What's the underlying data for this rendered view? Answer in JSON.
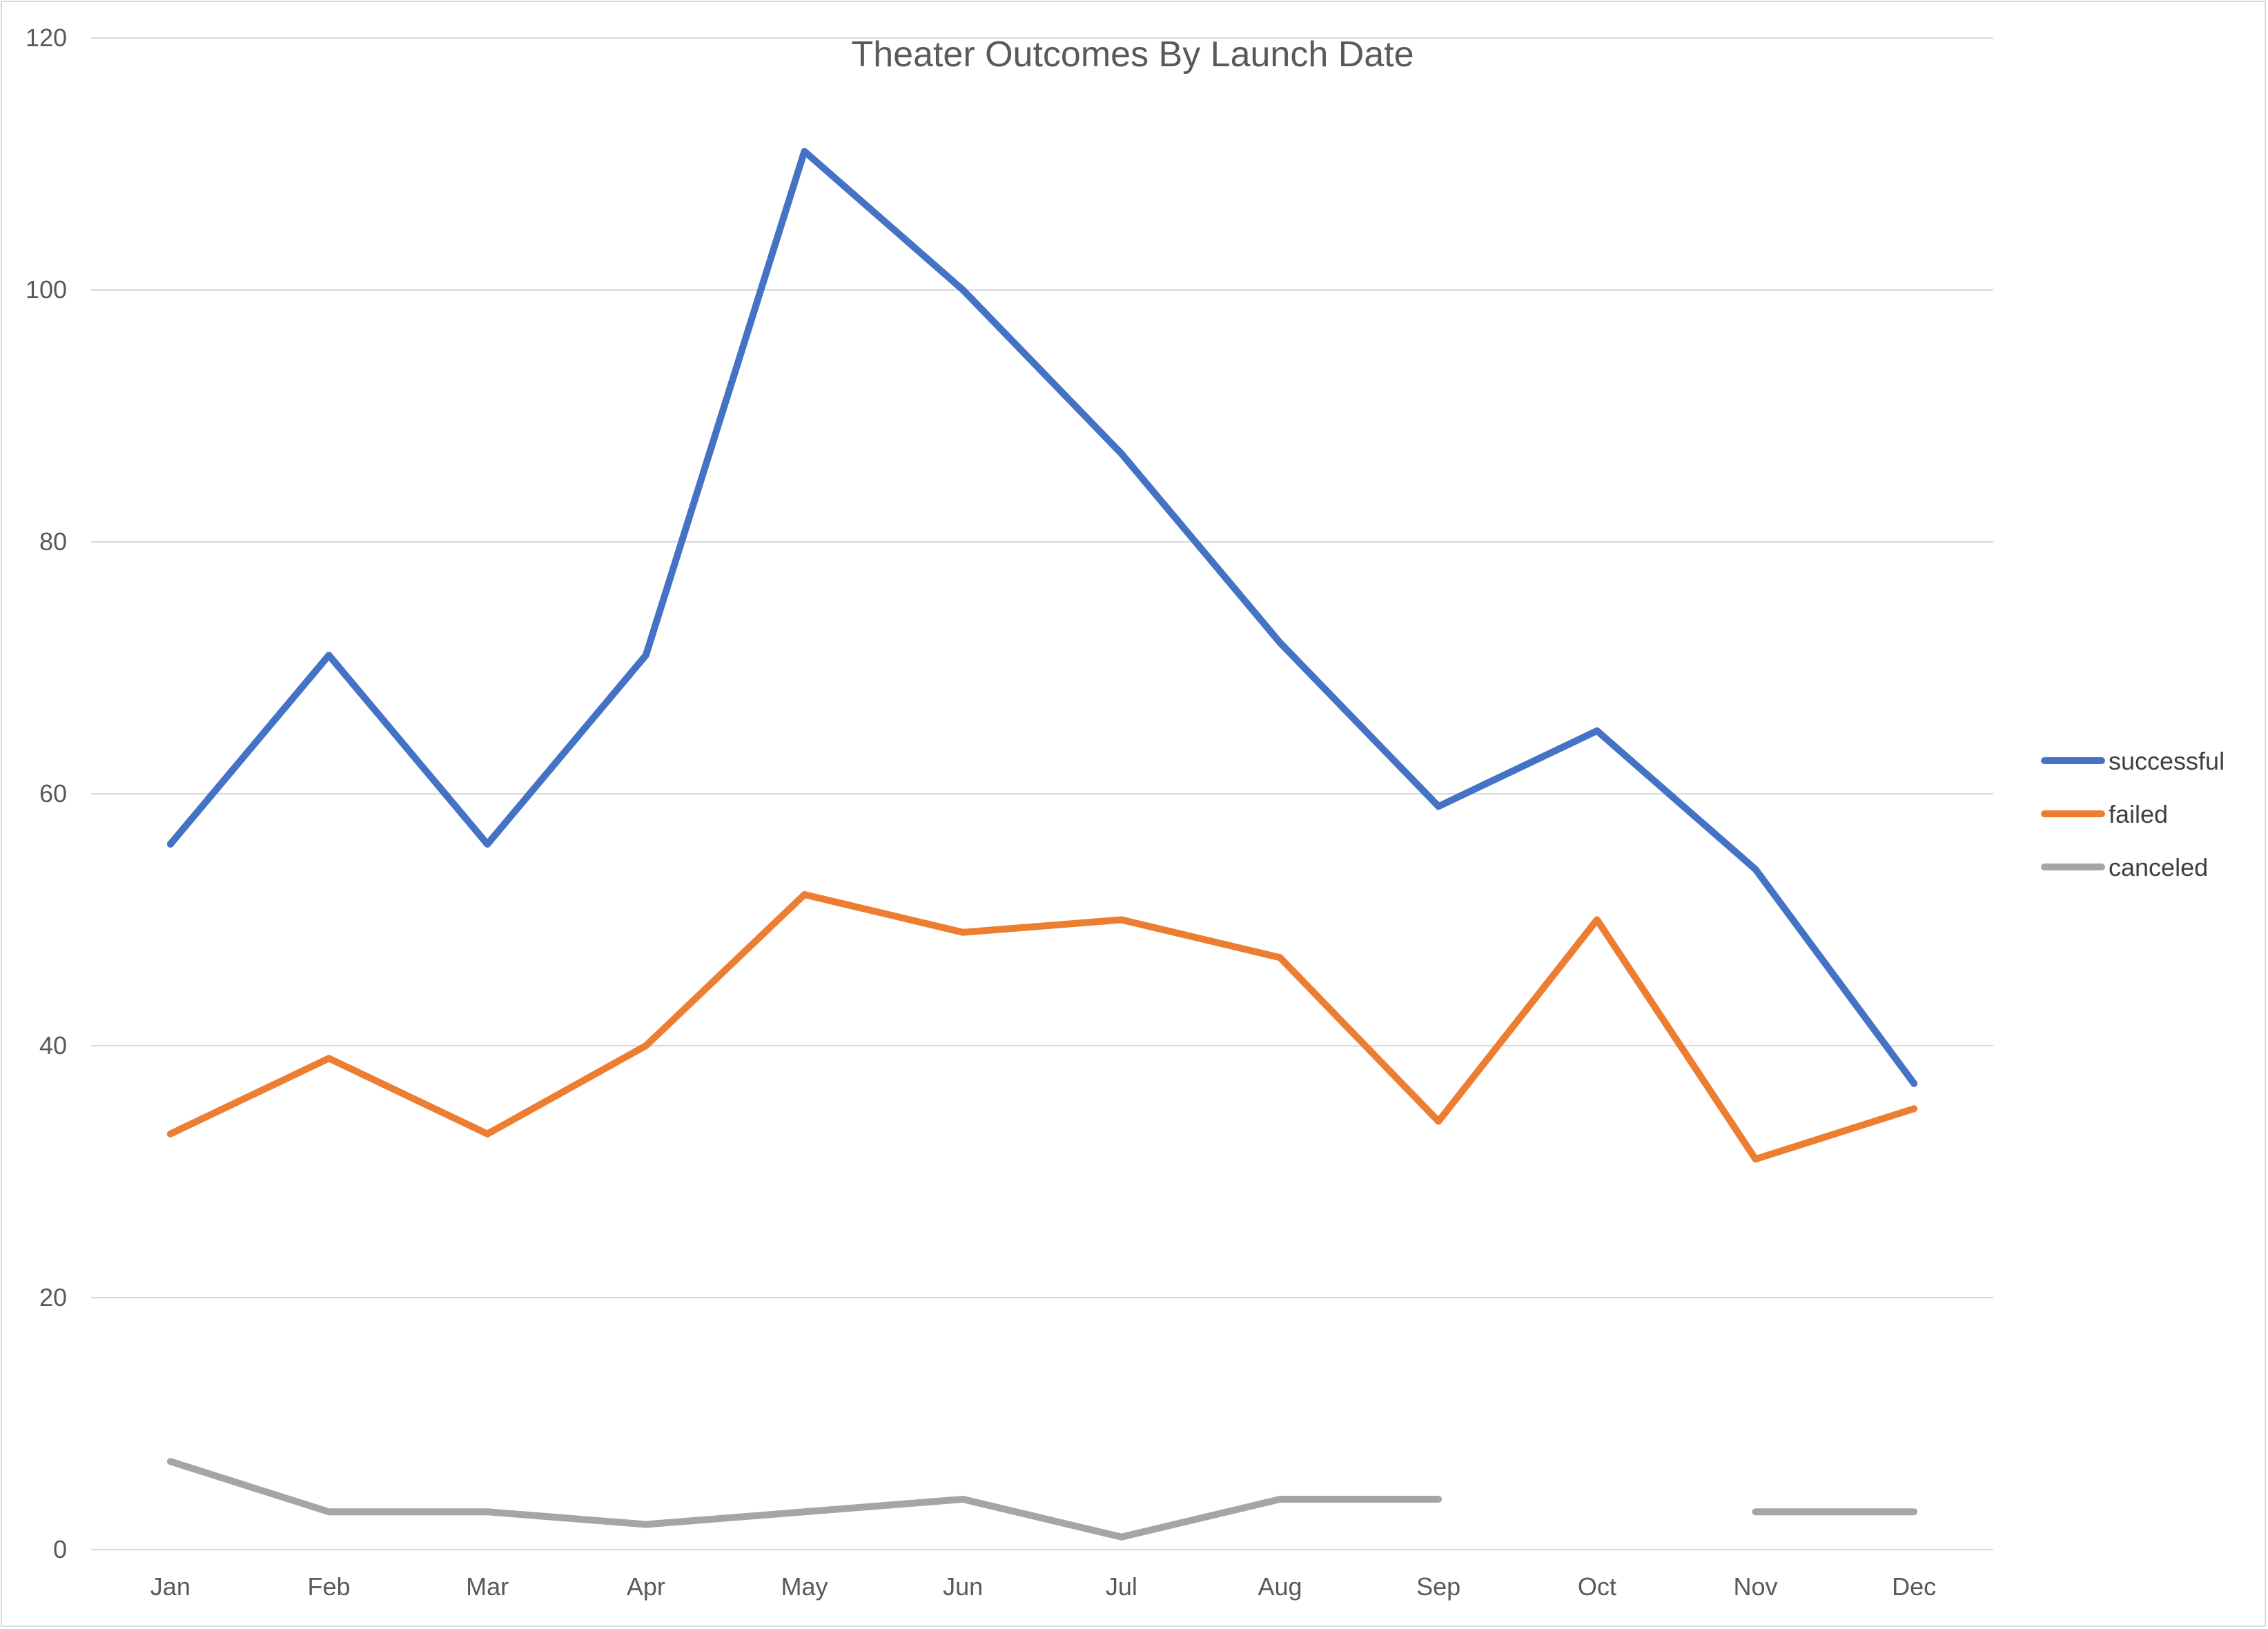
{
  "chart_data": {
    "type": "line",
    "title": "Theater Outcomes By Launch Date",
    "xlabel": "",
    "ylabel": "",
    "categories": [
      "Jan",
      "Feb",
      "Mar",
      "Apr",
      "May",
      "Jun",
      "Jul",
      "Aug",
      "Sep",
      "Oct",
      "Nov",
      "Dec"
    ],
    "ylim": [
      0,
      120
    ],
    "yticks": [
      0,
      20,
      40,
      60,
      80,
      100,
      120
    ],
    "grid": true,
    "legend_position": "right",
    "series": [
      {
        "name": "successful",
        "color": "#4472C4",
        "values": [
          56,
          71,
          56,
          71,
          111,
          100,
          87,
          72,
          59,
          65,
          54,
          37
        ]
      },
      {
        "name": "failed",
        "color": "#ED7D31",
        "values": [
          33,
          39,
          33,
          40,
          52,
          49,
          50,
          47,
          34,
          50,
          31,
          35
        ]
      },
      {
        "name": "canceled",
        "color": "#A5A5A5",
        "values": [
          7,
          3,
          3,
          2,
          3,
          4,
          1,
          4,
          4,
          null,
          3,
          3
        ]
      }
    ]
  }
}
